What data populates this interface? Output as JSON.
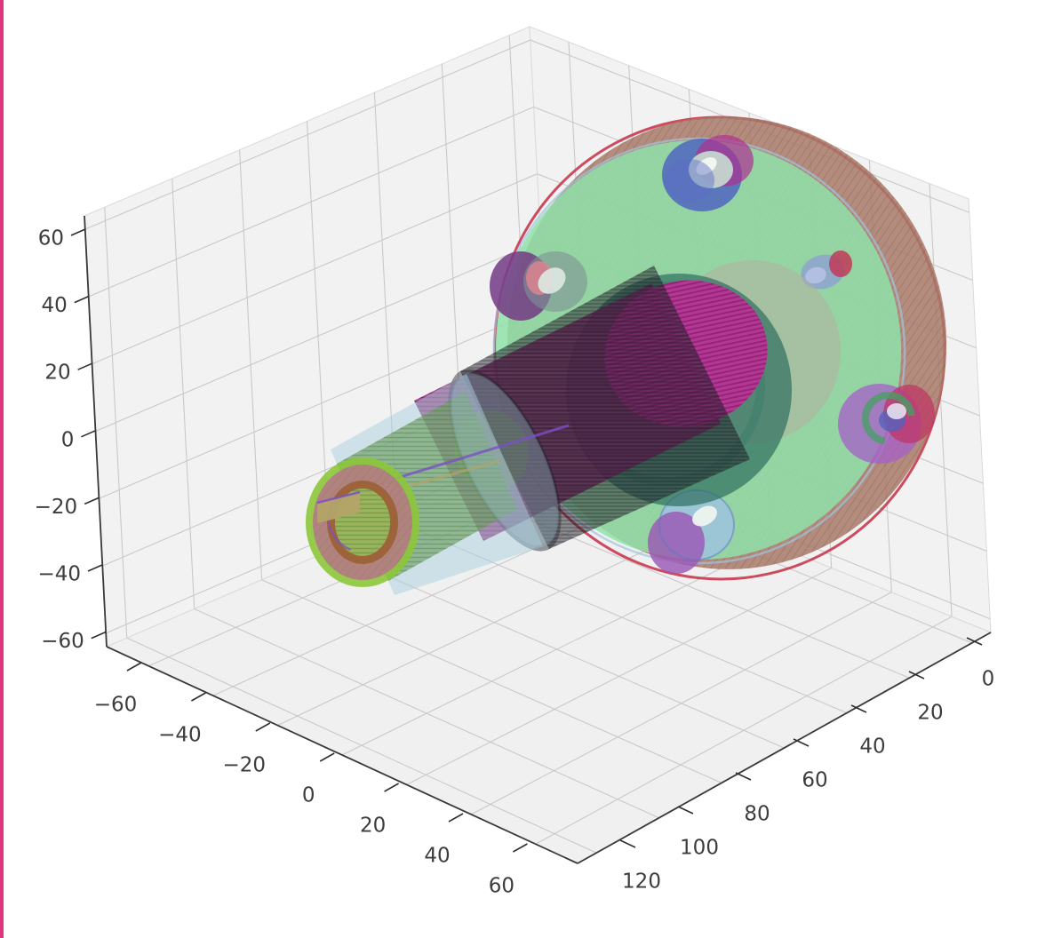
{
  "window": {
    "left_border_color": "#e0357d",
    "background": "#ffffff"
  },
  "chart_data": {
    "type": "3d_mesh",
    "title": "",
    "description": "Matplotlib 3D axes showing a translucent CAD mesh of a circular flange with bolt holes and a hollow keyed shaft extending from its center hub",
    "axes": {
      "x": {
        "tick_labels": [
          "0",
          "20",
          "40",
          "60",
          "80",
          "100",
          "120"
        ],
        "ticks": [
          0,
          20,
          40,
          60,
          80,
          100,
          120
        ],
        "range": [
          -6,
          126
        ]
      },
      "y": {
        "tick_labels": [
          "−60",
          "−40",
          "−20",
          "0",
          "20",
          "40",
          "60"
        ],
        "ticks": [
          -60,
          -40,
          -20,
          0,
          20,
          40,
          60
        ],
        "range": [
          -73,
          73
        ]
      },
      "z": {
        "tick_labels": [
          "60",
          "40",
          "20",
          "0",
          "−20",
          "−40",
          "−60"
        ],
        "ticks": [
          60,
          40,
          20,
          0,
          -20,
          -40,
          -60
        ],
        "range": [
          -64,
          64
        ]
      }
    },
    "grid": true,
    "legend": false,
    "style": {
      "pane_wall": "#f2f2f2",
      "pane_floor": "#f0f0f0",
      "grid_line": "#c9c9c9",
      "pane_edge": "#dadada",
      "axis_line": "#38383f",
      "tick_color": "#2f2f2f",
      "label_color": "#3d3d3d",
      "label_font_px": 23
    },
    "object_colors": {
      "disc_face_green": "#8fe2aa",
      "disc_rim_brown": "#a87a68",
      "disc_edge_crimson": "#c9384f",
      "disc_edge_lightblue": "#9fc3e0",
      "hub_teal": "#2f6e5f",
      "hub_back_tan": "#b5ae9e",
      "core_magenta": "#c02f98",
      "core_magenta_dark": "#8e2470",
      "core_stripe": "#6d0f57",
      "shaft_gray": "#23232b",
      "sleeve_lightblue": "#a9cede",
      "sleeve_core_green": "#6fa065",
      "inner_olive": "#7d7d2b",
      "cap_ring_yellowgreen": "#8cc63a",
      "cap_ring_rose": "#b47b85",
      "cap_ring_sienna": "#9a5f2f",
      "cap_bore_green": "#9ab85c",
      "keyway_violet": "#7a50c8",
      "keyway_tan": "#b3a468",
      "hole_blue": "#4c5fc2",
      "hole_magenta": "#ae3090",
      "hole_lightblue": "#9ec2e2",
      "hole_purple": "#9a55b4",
      "hole_violet": "#a55fc9",
      "hole_crimson": "#c13263",
      "hole_green_ring": "#44a060",
      "hole_gray": "#7e9294",
      "hole_dark_purple": "#733a85",
      "hole_lavender": "#8d9cd4",
      "hole_bore_light": "#eef4f0"
    }
  }
}
